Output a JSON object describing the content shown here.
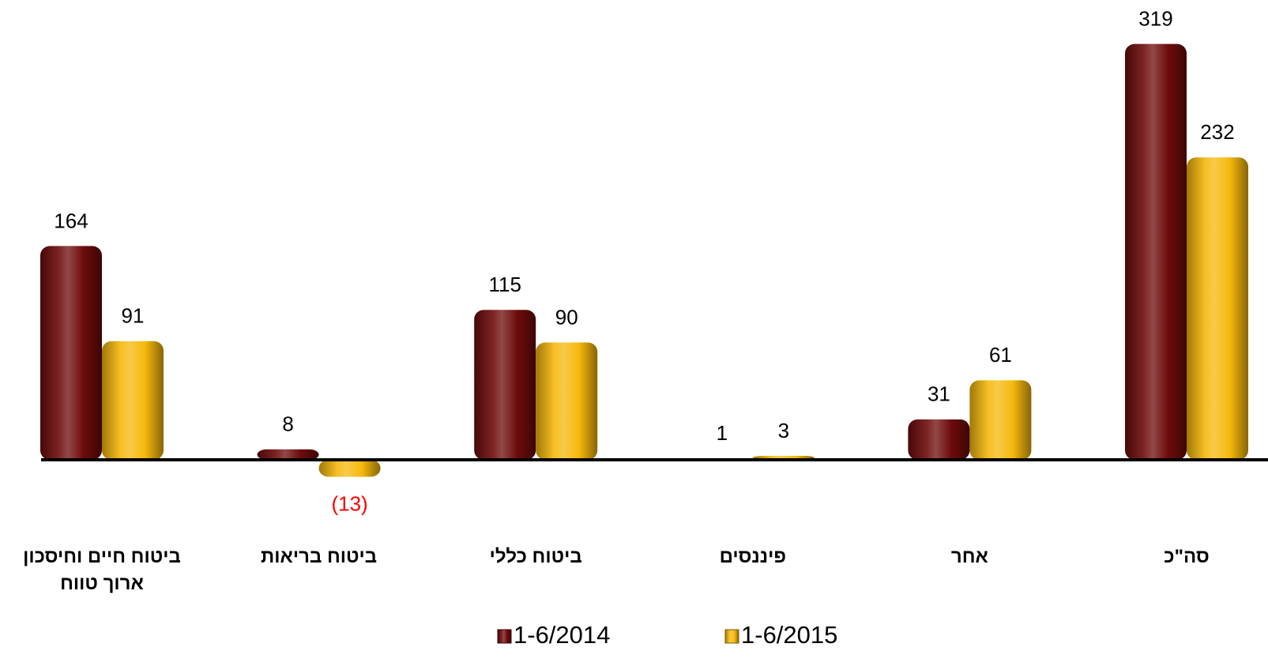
{
  "chart_data": {
    "type": "bar",
    "categories": [
      "ביטוח חיים וחיסכון ארוך טווח",
      "ביטוח בריאות",
      "ביטוח כללי",
      "פיננסים",
      "אחר",
      "סה\"כ"
    ],
    "series": [
      {
        "name": "1-6/2014",
        "color": "#6e0b0b",
        "values": [
          164,
          8,
          115,
          1,
          31,
          319
        ]
      },
      {
        "name": "1-6/2015",
        "color": "#f6b80c",
        "values": [
          91,
          -13,
          90,
          3,
          61,
          232
        ],
        "value_labels": [
          "91",
          "(13)",
          "90",
          "3",
          "61",
          "232"
        ]
      }
    ],
    "negative_label_color": "#ff0000",
    "ylim": [
      -15,
      330
    ],
    "legend": "bottom"
  }
}
